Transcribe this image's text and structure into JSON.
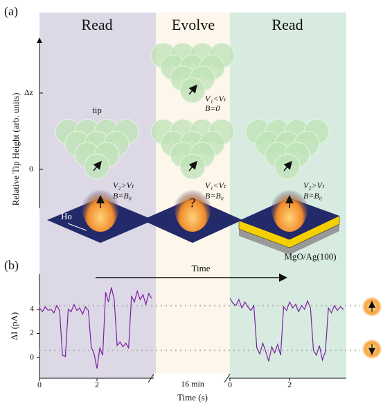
{
  "panel_a": {
    "label": "(a)",
    "phases": [
      "Read",
      "Evolve",
      "Read"
    ],
    "y_axis_label": "Relative Tip Height (arb. units)",
    "y_ticks": [
      "Δz",
      "0"
    ],
    "tip_label": "tip",
    "unknown_state": "?",
    "atom_label": "Ho",
    "substrate_label": "MgO/Ag(100)",
    "conditions": [
      [
        "V₂>Vₜ",
        "B=B₀"
      ],
      [
        "V₁<Vₜ",
        "B=0"
      ],
      [
        "V₁<Vₜ",
        "B=B₀"
      ],
      [
        "V₂>Vₜ",
        "B=B₀"
      ]
    ]
  },
  "panel_b": {
    "label": "(b)",
    "time_arrow_label": "Time",
    "x_axis_label": "Time (s)",
    "gap_label": "16 min"
  },
  "chart_data": [
    {
      "type": "line",
      "ylabel": "ΔI (pA)",
      "x": [
        0,
        0.1,
        0.2,
        0.3,
        0.4,
        0.5,
        0.6,
        0.7,
        0.8,
        0.9,
        1.0,
        1.1,
        1.2,
        1.3,
        1.4,
        1.5,
        1.6,
        1.7,
        1.8,
        1.9,
        2.0,
        2.1,
        2.2,
        2.3,
        2.4,
        2.5,
        2.6,
        2.7,
        2.8,
        2.9,
        3.0,
        3.1,
        3.2,
        3.3,
        3.4,
        3.5,
        3.6,
        3.7,
        3.8,
        3.9
      ],
      "series": [
        {
          "color": "#7a1fa0",
          "values": [
            4.1,
            3.8,
            4.2,
            3.9,
            4.0,
            3.7,
            4.3,
            3.9,
            0.2,
            0.1,
            4.0,
            3.8,
            4.4,
            3.9,
            4.1,
            3.6,
            4.2,
            3.9,
            0.9,
            0.3,
            -0.9,
            0.8,
            0.2,
            5.4,
            4.6,
            5.8,
            4.8,
            1.0,
            1.3,
            0.9,
            1.2,
            0.8,
            5.1,
            4.6,
            5.5,
            4.8,
            5.2,
            4.4,
            5.3,
            4.9
          ]
        }
      ],
      "xlim": [
        0,
        3.95
      ],
      "ylim": [
        -1.7,
        6.9
      ],
      "xticks": [
        0,
        2
      ],
      "yticks": [
        0,
        2,
        4
      ],
      "reference_levels": [
        4.3,
        0.6
      ]
    },
    {
      "type": "line",
      "x": [
        0,
        0.1,
        0.2,
        0.3,
        0.4,
        0.5,
        0.6,
        0.7,
        0.8,
        0.9,
        1.0,
        1.1,
        1.2,
        1.3,
        1.4,
        1.5,
        1.6,
        1.7,
        1.8,
        1.9,
        2.0,
        2.1,
        2.2,
        2.3,
        2.4,
        2.5,
        2.6,
        2.7,
        2.8,
        2.9,
        3.0,
        3.1,
        3.2,
        3.3,
        3.4,
        3.5,
        3.6,
        3.7,
        3.8
      ],
      "series": [
        {
          "color": "#7a1fa0",
          "values": [
            4.9,
            4.5,
            4.3,
            4.8,
            4.1,
            4.6,
            4.2,
            3.9,
            4.3,
            0.8,
            0.3,
            1.2,
            0.5,
            -0.3,
            0.9,
            0.4,
            1.1,
            0.2,
            4.2,
            3.9,
            4.6,
            4.1,
            4.4,
            3.8,
            4.3,
            4.0,
            4.7,
            4.1,
            0.6,
            0.2,
            1.0,
            -0.2,
            0.5,
            4.1,
            3.7,
            4.3,
            3.9,
            4.2,
            4.0
          ]
        }
      ],
      "xlim": [
        0,
        3.9
      ],
      "ylim": [
        -1.7,
        6.9
      ],
      "xticks": [
        0,
        2
      ]
    }
  ]
}
